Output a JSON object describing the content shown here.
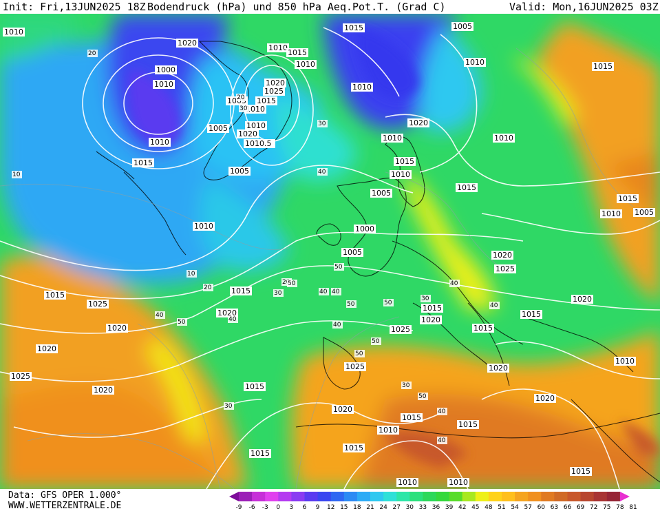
{
  "header": {
    "init": "Init: Fri,13JUN2025 18Z",
    "title": "Bodendruck (hPa) und 850 hPa Aeq.Pot.T. (Grad C)",
    "valid": "Valid: Mon,16JUN2025 03Z"
  },
  "footer": {
    "data_source": "Data: GFS OPER 1.000°",
    "website": "WWW.WETTERZENTRALE.DE"
  },
  "colorbar": {
    "ticks": [
      "-9",
      "-6",
      "-3",
      "0",
      "3",
      "6",
      "9",
      "12",
      "15",
      "18",
      "21",
      "24",
      "27",
      "30",
      "33",
      "36",
      "39",
      "42",
      "45",
      "48",
      "51",
      "54",
      "57",
      "60",
      "63",
      "66",
      "69",
      "72",
      "75",
      "78",
      "81"
    ],
    "colors": [
      "#7d0d9a",
      "#9b1fb7",
      "#c62fd8",
      "#e040ee",
      "#b43bf0",
      "#8a3bf2",
      "#5a3bf0",
      "#3a46f0",
      "#2f67f2",
      "#2c8af4",
      "#2cabf6",
      "#2fc8f0",
      "#2fe0d8",
      "#2de6a8",
      "#2be07c",
      "#2cd85a",
      "#34d83c",
      "#58dc2a",
      "#a8e820",
      "#eef018",
      "#ffd21a",
      "#ffbf1c",
      "#f5a41f",
      "#f0901f",
      "#e07a22",
      "#d06a26",
      "#c8582b",
      "#b8462f",
      "#a83434",
      "#962536",
      "#e830d0"
    ]
  },
  "pressure_labels": [
    "1015",
    "1010",
    "1015",
    "1005",
    "1000",
    "1010",
    "1010",
    "1015",
    "1010",
    "1010",
    "1020",
    "1025",
    "1005",
    "1015",
    "1010",
    "1005",
    "1010",
    "1020",
    "1010.5",
    "1010",
    "1015",
    "1005",
    "1015",
    "1010",
    "1020",
    "1010",
    "1005",
    "1000",
    "1005",
    "1010",
    "1015",
    "1010",
    "1015",
    "1010",
    "1005",
    "1010",
    "1015",
    "1020",
    "1025",
    "1015",
    "1020",
    "1015",
    "1020",
    "1025",
    "1025",
    "1025",
    "1020",
    "1015",
    "1020",
    "1025",
    "1020",
    "1015",
    "1020",
    "1015",
    "1015",
    "1020",
    "1020",
    "1020",
    "1015",
    "1010",
    "1015",
    "1015",
    "1010",
    "1010",
    "1015",
    "1015",
    "1010",
    "1010",
    "1020",
    "1015"
  ],
  "temperature_labels": [
    "20",
    "10",
    "20",
    "30",
    "40",
    "30",
    "20",
    "10",
    "20",
    "40",
    "50",
    "40",
    "50",
    "50",
    "40",
    "30",
    "40",
    "50",
    "50",
    "40",
    "30",
    "50",
    "40",
    "30",
    "40",
    "50",
    "40",
    "50",
    "30",
    "40"
  ]
}
